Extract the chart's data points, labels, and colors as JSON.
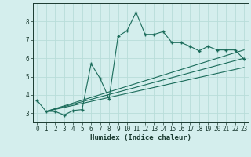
{
  "xlabel": "Humidex (Indice chaleur)",
  "ylabel": "",
  "bg_color": "#d4eeed",
  "grid_color": "#b8ddd9",
  "line_color": "#1a6b5a",
  "xlim": [
    -0.5,
    23.5
  ],
  "ylim": [
    2.5,
    9.0
  ],
  "xticks": [
    0,
    1,
    2,
    3,
    4,
    5,
    6,
    7,
    8,
    9,
    10,
    11,
    12,
    13,
    14,
    15,
    16,
    17,
    18,
    19,
    20,
    21,
    22,
    23
  ],
  "yticks": [
    3,
    4,
    5,
    6,
    7,
    8
  ],
  "curve1_x": [
    0,
    1,
    2,
    3,
    4,
    5,
    6,
    7,
    8,
    9,
    10,
    11,
    12,
    13,
    14,
    15,
    16,
    17,
    18,
    19,
    20,
    21,
    22,
    23
  ],
  "curve1_y": [
    3.7,
    3.1,
    3.1,
    2.9,
    3.15,
    3.2,
    5.7,
    4.9,
    3.8,
    7.2,
    7.5,
    8.5,
    7.3,
    7.3,
    7.45,
    6.85,
    6.85,
    6.65,
    6.4,
    6.65,
    6.45,
    6.45,
    6.45,
    5.95
  ],
  "line2_x": [
    1,
    23
  ],
  "line2_y": [
    3.1,
    6.45
  ],
  "line3_x": [
    1,
    23
  ],
  "line3_y": [
    3.1,
    6.0
  ],
  "line4_x": [
    1,
    23
  ],
  "line4_y": [
    3.1,
    5.5
  ]
}
